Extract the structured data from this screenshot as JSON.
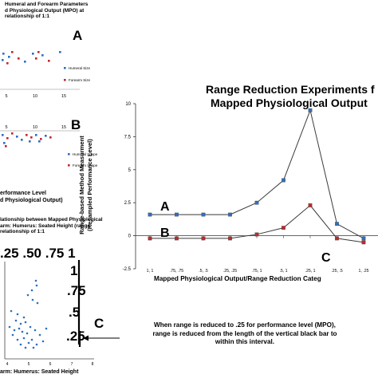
{
  "panel_a": {
    "title_lines": [
      "Humeral and Forearm Parameters",
      "d Physiological Output (MPO) at",
      "relationship of 1:1"
    ],
    "letter": "A",
    "legend": [
      {
        "label": "Humeral Size",
        "color": "#2e6fc0"
      },
      {
        "label": "Forearm Size",
        "color": "#c0282d"
      }
    ],
    "x_ticks": [
      "5",
      "10",
      "15"
    ]
  },
  "panel_b": {
    "letter": "B",
    "legend": [
      {
        "label": "Humeral Shape",
        "color": "#2e6fc0"
      },
      {
        "label": "Forearm Shape",
        "color": "#c0282d"
      }
    ],
    "x_ticks": [
      "5",
      "10",
      "15"
    ],
    "xlabel_lines": [
      "erformance Level",
      "d Physiological Output)"
    ]
  },
  "panel_c": {
    "title_lines": [
      "lationship between Mapped Physiological",
      "arm: Humerus: Seated Height (range",
      "relationship of 1:1"
    ],
    "top_ticks": [
      ".25",
      ".50",
      ".75",
      "1"
    ],
    "range_labels": [
      "1",
      ".75",
      ".5",
      ".25"
    ],
    "letter": "C",
    "xlabel": "arm: Humerus: Seated Height",
    "x_ticks": [
      "4",
      "5",
      "6",
      "7",
      "8"
    ],
    "annotation_lines": [
      "When range is reduced to .25 for performance level (MPO),",
      "range is reduced from the length of the vertical black bar to",
      "within this interval."
    ]
  },
  "chart_data": {
    "type": "line",
    "title_lines": [
      "Range Reduction Experiments f",
      "Mapped Physiological Output"
    ],
    "ylabel_lines": [
      "Range-based Method Measurment",
      "(Resampled Performance Level)"
    ],
    "xlabel": "Mapped Physiological Output/Range Reduction Categ",
    "categories": [
      "1, 1",
      ".75, .75",
      ".5, .5",
      ".25, .25",
      ".75, 1",
      ".5, 1",
      ".25, 1",
      ".25, .5",
      "1, .25"
    ],
    "ylim": [
      -2.5,
      10
    ],
    "y_ticks": [
      -2.5,
      0,
      2.5,
      5,
      7.5,
      10
    ],
    "y_tick_labels": [
      "-2.5",
      "0",
      "2.5",
      "5",
      "7.5",
      "10"
    ],
    "series": [
      {
        "name": "A",
        "color": "#2e6fc0",
        "values": [
          1.6,
          1.6,
          1.6,
          1.6,
          2.5,
          4.2,
          9.5,
          0.9,
          -0.2
        ]
      },
      {
        "name": "B",
        "color": "#c0282d",
        "values": [
          -0.2,
          -0.2,
          -0.2,
          -0.2,
          0.1,
          0.6,
          2.3,
          -0.2,
          -0.5
        ]
      }
    ],
    "annotations": [
      "A",
      "B",
      "C"
    ]
  }
}
